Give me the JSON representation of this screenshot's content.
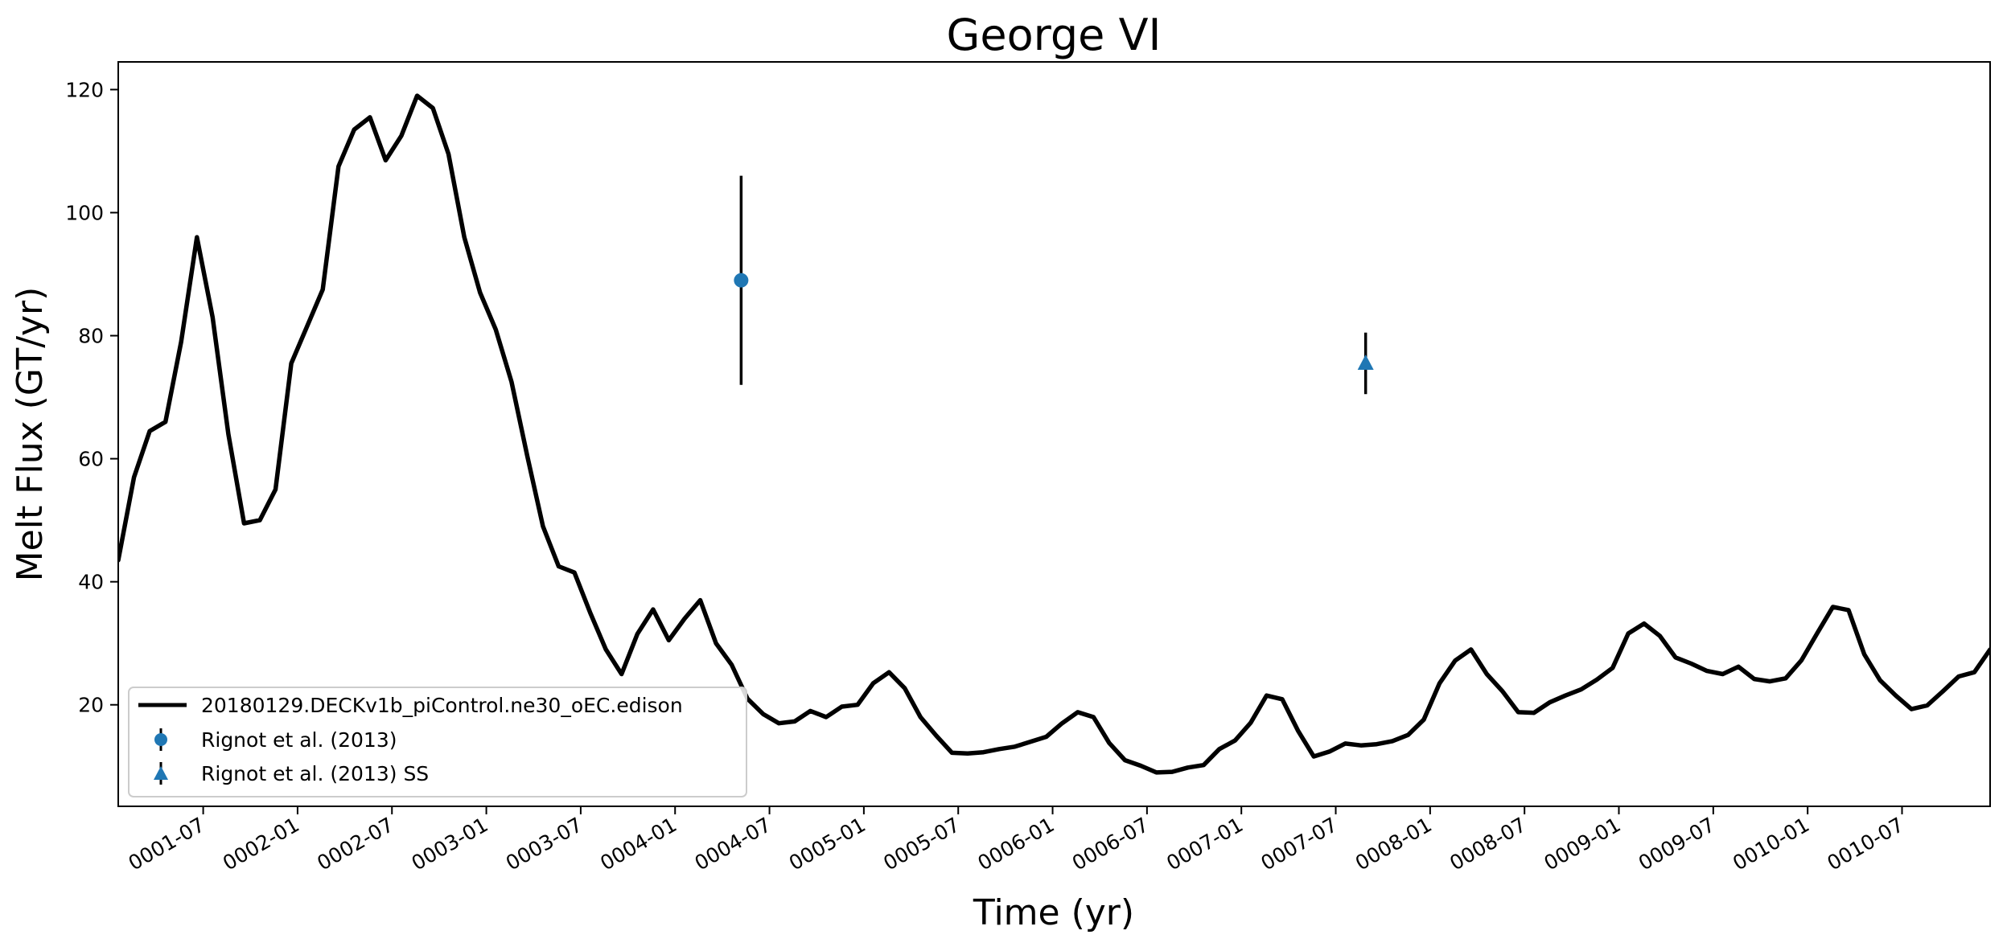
{
  "chart_data": {
    "type": "line",
    "title": "George VI",
    "xlabel": "Time (yr)",
    "ylabel": "Melt Flux (GT/yr)",
    "xlim_months": [
      0.0,
      119.0
    ],
    "ylim": [
      3.5,
      124.5
    ],
    "yticks": [
      20,
      40,
      60,
      80,
      100,
      120
    ],
    "xticks": [
      {
        "label": "0001-07",
        "month": 5.4
      },
      {
        "label": "0002-01",
        "month": 11.4
      },
      {
        "label": "0002-07",
        "month": 17.4
      },
      {
        "label": "0003-01",
        "month": 23.4
      },
      {
        "label": "0003-07",
        "month": 29.4
      },
      {
        "label": "0004-01",
        "month": 35.4
      },
      {
        "label": "0004-07",
        "month": 41.4
      },
      {
        "label": "0005-01",
        "month": 47.4
      },
      {
        "label": "0005-07",
        "month": 53.4
      },
      {
        "label": "0006-01",
        "month": 59.4
      },
      {
        "label": "0006-07",
        "month": 65.4
      },
      {
        "label": "0007-01",
        "month": 71.4
      },
      {
        "label": "0007-07",
        "month": 77.4
      },
      {
        "label": "0008-01",
        "month": 83.4
      },
      {
        "label": "0008-07",
        "month": 89.4
      },
      {
        "label": "0009-01",
        "month": 95.4
      },
      {
        "label": "0009-07",
        "month": 101.4
      },
      {
        "label": "0010-01",
        "month": 107.4
      },
      {
        "label": "0010-07",
        "month": 113.4
      }
    ],
    "series": [
      {
        "name": "20180129.DECKv1b_piControl.ne30_oEC.edison",
        "color": "#000000",
        "x_start_month": 0,
        "x_step_month": 1,
        "values": [
          43.5,
          57,
          64.5,
          66,
          79,
          96,
          83,
          64,
          49.5,
          50,
          55,
          75.5,
          81.5,
          87.5,
          107.5,
          113.5,
          115.5,
          108.5,
          112.5,
          119,
          117,
          109.5,
          96,
          87,
          81,
          72.5,
          60.5,
          49,
          42.5,
          41.5,
          35,
          29,
          25,
          31.5,
          35.5,
          30.5,
          34,
          37,
          30,
          26.5,
          21,
          18.5,
          17,
          17.3,
          19,
          18,
          19.7,
          20,
          23.5,
          25.3,
          22.7,
          18,
          15,
          12.2,
          12.1,
          12.3,
          12.8,
          13.2,
          14,
          14.8,
          17,
          18.8,
          18,
          13.8,
          11,
          10.1,
          9,
          9.1,
          9.8,
          10.2,
          12.8,
          14.2,
          17.1,
          21.5,
          20.9,
          15.8,
          11.6,
          12.4,
          13.7,
          13.4,
          13.6,
          14.1,
          15.1,
          17.6,
          23.5,
          27.2,
          29,
          25,
          22.2,
          18.8,
          18.7,
          20.4,
          21.5,
          22.5,
          24.1,
          26,
          31.6,
          33.2,
          31.2,
          27.7,
          26.7,
          25.5,
          25,
          26.2,
          24.2,
          23.8,
          24.3,
          27.2,
          31.6,
          35.9,
          35.4,
          28.2,
          24,
          21.5,
          19.3,
          19.9,
          22.2,
          24.6,
          25.3,
          29
        ]
      }
    ],
    "observations": [
      {
        "name": "Rignot et al. (2013)",
        "marker": "circle",
        "color": "#1f77b4",
        "month": 39.6,
        "value": 89,
        "err_low": 72,
        "err_high": 106
      },
      {
        "name": "Rignot et al. (2013) SS",
        "marker": "triangle",
        "color": "#1f77b4",
        "month": 79.3,
        "value": 75.5,
        "err_low": 70.5,
        "err_high": 80.5
      }
    ],
    "legend_position": "lower-left",
    "grid": false
  }
}
